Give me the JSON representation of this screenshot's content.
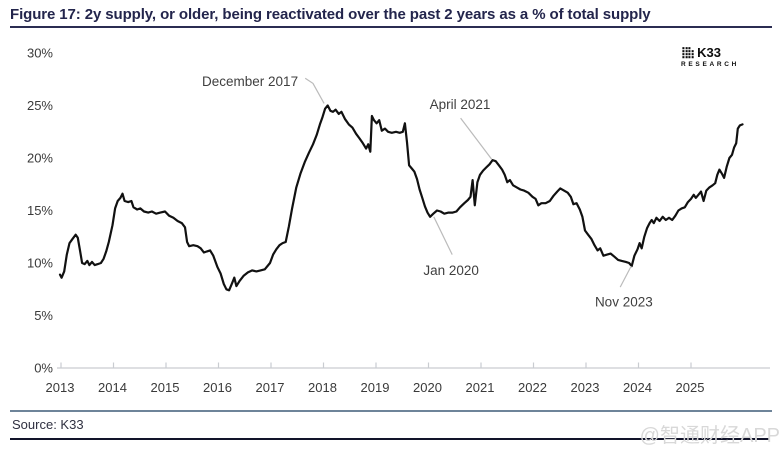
{
  "figure": {
    "title": "Figure 17: 2y supply, or older, being reactivated over the past 2 years as a % of total supply"
  },
  "logo": {
    "icon_glyph": "⣿⣷",
    "name": "K33",
    "subtitle": "RESEARCH"
  },
  "source": {
    "label": "Source: K33"
  },
  "watermark": {
    "text": "@智通财经APP"
  },
  "colors": {
    "line": "#111111",
    "axis": "#c9ccd1",
    "leader": "#bbbbbb",
    "title": "#23254c",
    "tick_label": "#3a3a3a",
    "annotation": "#3f3f3f",
    "rule_top": "#6e8499",
    "rule_bottom": "#12142a",
    "watermark": "#d8d8d8"
  },
  "chart_data": {
    "type": "line",
    "title": "Figure 17: 2y supply, or older, being reactivated over the past 2 years as a % of total supply",
    "xlabel": "",
    "ylabel": "",
    "grid": false,
    "legend": "none",
    "x_ticks": [
      2013,
      2014,
      2015,
      2016,
      2017,
      2018,
      2019,
      2020,
      2021,
      2022,
      2023,
      2024,
      2025
    ],
    "y_ticks": [
      0,
      5,
      10,
      15,
      20,
      25,
      30
    ],
    "y_tick_suffix": "%",
    "xlim": [
      2012.95,
      2026.55
    ],
    "ylim": [
      0,
      30
    ],
    "annotations": [
      {
        "label": "December 2017",
        "x": 2016.62,
        "y": 27.3,
        "leader": [
          [
            2017.67,
            27.6
          ],
          [
            2017.82,
            27.1
          ],
          [
            2018.03,
            25.2
          ]
        ]
      },
      {
        "label": "April 2021",
        "x": 2020.62,
        "y": 25.1,
        "leader": [
          [
            2020.63,
            23.8
          ],
          [
            2021.22,
            19.9
          ]
        ]
      },
      {
        "label": "Jan 2020",
        "x": 2020.45,
        "y": 9.3,
        "leader": [
          [
            2020.47,
            10.8
          ],
          [
            2020.12,
            14.4
          ]
        ]
      },
      {
        "label": "Nov 2023",
        "x": 2023.74,
        "y": 6.3,
        "leader": [
          [
            2023.67,
            7.7
          ],
          [
            2023.88,
            9.7
          ]
        ]
      }
    ],
    "series": [
      {
        "name": "2y+ supply reactivated as % of total supply",
        "points": [
          [
            2013.0,
            8.9
          ],
          [
            2013.03,
            8.6
          ],
          [
            2013.08,
            9.2
          ],
          [
            2013.13,
            10.8
          ],
          [
            2013.18,
            11.9
          ],
          [
            2013.24,
            12.3
          ],
          [
            2013.3,
            12.7
          ],
          [
            2013.34,
            12.4
          ],
          [
            2013.38,
            11.2
          ],
          [
            2013.42,
            10.0
          ],
          [
            2013.47,
            9.9
          ],
          [
            2013.52,
            10.2
          ],
          [
            2013.56,
            9.8
          ],
          [
            2013.61,
            10.1
          ],
          [
            2013.66,
            9.8
          ],
          [
            2013.72,
            9.9
          ],
          [
            2013.78,
            10.0
          ],
          [
            2013.83,
            10.4
          ],
          [
            2013.88,
            11.1
          ],
          [
            2013.93,
            12.0
          ],
          [
            2014.0,
            13.6
          ],
          [
            2014.05,
            15.2
          ],
          [
            2014.1,
            15.9
          ],
          [
            2014.15,
            16.2
          ],
          [
            2014.19,
            16.6
          ],
          [
            2014.23,
            15.9
          ],
          [
            2014.3,
            15.8
          ],
          [
            2014.36,
            15.9
          ],
          [
            2014.4,
            15.3
          ],
          [
            2014.47,
            15.1
          ],
          [
            2014.53,
            15.2
          ],
          [
            2014.6,
            14.9
          ],
          [
            2014.68,
            14.8
          ],
          [
            2014.75,
            14.9
          ],
          [
            2014.83,
            14.7
          ],
          [
            2014.91,
            14.8
          ],
          [
            2015.0,
            14.9
          ],
          [
            2015.08,
            14.5
          ],
          [
            2015.16,
            14.3
          ],
          [
            2015.24,
            14.0
          ],
          [
            2015.32,
            13.8
          ],
          [
            2015.38,
            13.4
          ],
          [
            2015.42,
            12.0
          ],
          [
            2015.46,
            11.6
          ],
          [
            2015.54,
            11.7
          ],
          [
            2015.62,
            11.6
          ],
          [
            2015.68,
            11.4
          ],
          [
            2015.74,
            11.0
          ],
          [
            2015.8,
            11.1
          ],
          [
            2015.86,
            11.2
          ],
          [
            2015.92,
            10.7
          ],
          [
            2016.0,
            9.6
          ],
          [
            2016.06,
            9.0
          ],
          [
            2016.12,
            8.0
          ],
          [
            2016.17,
            7.5
          ],
          [
            2016.22,
            7.4
          ],
          [
            2016.28,
            8.1
          ],
          [
            2016.32,
            8.6
          ],
          [
            2016.36,
            7.8
          ],
          [
            2016.42,
            8.3
          ],
          [
            2016.5,
            8.8
          ],
          [
            2016.58,
            9.1
          ],
          [
            2016.66,
            9.3
          ],
          [
            2016.74,
            9.2
          ],
          [
            2016.82,
            9.3
          ],
          [
            2016.9,
            9.4
          ],
          [
            2017.0,
            10.0
          ],
          [
            2017.06,
            10.8
          ],
          [
            2017.12,
            11.3
          ],
          [
            2017.18,
            11.7
          ],
          [
            2017.24,
            11.9
          ],
          [
            2017.3,
            12.0
          ],
          [
            2017.36,
            13.5
          ],
          [
            2017.42,
            15.2
          ],
          [
            2017.5,
            17.2
          ],
          [
            2017.58,
            18.5
          ],
          [
            2017.66,
            19.6
          ],
          [
            2017.74,
            20.5
          ],
          [
            2017.82,
            21.3
          ],
          [
            2017.89,
            22.2
          ],
          [
            2017.95,
            23.2
          ],
          [
            2018.0,
            23.9
          ],
          [
            2018.05,
            24.7
          ],
          [
            2018.1,
            25.0
          ],
          [
            2018.15,
            24.5
          ],
          [
            2018.2,
            24.4
          ],
          [
            2018.25,
            24.6
          ],
          [
            2018.31,
            24.2
          ],
          [
            2018.36,
            24.4
          ],
          [
            2018.43,
            23.7
          ],
          [
            2018.5,
            23.2
          ],
          [
            2018.57,
            22.9
          ],
          [
            2018.64,
            22.3
          ],
          [
            2018.7,
            21.9
          ],
          [
            2018.77,
            21.4
          ],
          [
            2018.83,
            20.9
          ],
          [
            2018.87,
            21.3
          ],
          [
            2018.91,
            20.6
          ],
          [
            2018.94,
            24.0
          ],
          [
            2018.98,
            23.6
          ],
          [
            2019.03,
            23.3
          ],
          [
            2019.08,
            23.6
          ],
          [
            2019.13,
            22.6
          ],
          [
            2019.19,
            22.8
          ],
          [
            2019.25,
            22.5
          ],
          [
            2019.32,
            22.4
          ],
          [
            2019.4,
            22.5
          ],
          [
            2019.47,
            22.4
          ],
          [
            2019.53,
            22.5
          ],
          [
            2019.57,
            23.3
          ],
          [
            2019.61,
            21.5
          ],
          [
            2019.65,
            19.3
          ],
          [
            2019.7,
            19.0
          ],
          [
            2019.75,
            18.7
          ],
          [
            2019.8,
            18.0
          ],
          [
            2019.85,
            17.0
          ],
          [
            2019.9,
            16.2
          ],
          [
            2019.95,
            15.4
          ],
          [
            2020.0,
            14.8
          ],
          [
            2020.05,
            14.4
          ],
          [
            2020.11,
            14.7
          ],
          [
            2020.18,
            15.0
          ],
          [
            2020.25,
            14.9
          ],
          [
            2020.32,
            14.7
          ],
          [
            2020.4,
            14.8
          ],
          [
            2020.48,
            14.8
          ],
          [
            2020.55,
            14.9
          ],
          [
            2020.62,
            15.3
          ],
          [
            2020.7,
            15.7
          ],
          [
            2020.77,
            16.0
          ],
          [
            2020.82,
            16.3
          ],
          [
            2020.86,
            17.9
          ],
          [
            2020.9,
            15.5
          ],
          [
            2020.95,
            17.7
          ],
          [
            2021.0,
            18.4
          ],
          [
            2021.06,
            18.8
          ],
          [
            2021.12,
            19.1
          ],
          [
            2021.18,
            19.4
          ],
          [
            2021.24,
            19.8
          ],
          [
            2021.3,
            19.7
          ],
          [
            2021.36,
            19.3
          ],
          [
            2021.42,
            18.9
          ],
          [
            2021.47,
            18.4
          ],
          [
            2021.52,
            17.7
          ],
          [
            2021.57,
            17.9
          ],
          [
            2021.63,
            17.4
          ],
          [
            2021.7,
            17.2
          ],
          [
            2021.77,
            17.0
          ],
          [
            2021.84,
            16.9
          ],
          [
            2021.92,
            16.7
          ],
          [
            2022.0,
            16.3
          ],
          [
            2022.06,
            16.1
          ],
          [
            2022.11,
            15.5
          ],
          [
            2022.17,
            15.7
          ],
          [
            2022.25,
            15.7
          ],
          [
            2022.33,
            15.9
          ],
          [
            2022.4,
            16.4
          ],
          [
            2022.47,
            16.8
          ],
          [
            2022.53,
            17.1
          ],
          [
            2022.6,
            16.9
          ],
          [
            2022.67,
            16.7
          ],
          [
            2022.73,
            16.3
          ],
          [
            2022.78,
            15.6
          ],
          [
            2022.84,
            15.7
          ],
          [
            2022.9,
            15.1
          ],
          [
            2022.95,
            14.4
          ],
          [
            2023.0,
            13.1
          ],
          [
            2023.06,
            12.7
          ],
          [
            2023.12,
            12.3
          ],
          [
            2023.18,
            11.7
          ],
          [
            2023.24,
            11.2
          ],
          [
            2023.29,
            11.4
          ],
          [
            2023.35,
            10.7
          ],
          [
            2023.42,
            10.8
          ],
          [
            2023.49,
            10.9
          ],
          [
            2023.56,
            10.6
          ],
          [
            2023.63,
            10.3
          ],
          [
            2023.7,
            10.2
          ],
          [
            2023.78,
            10.1
          ],
          [
            2023.84,
            10.0
          ],
          [
            2023.89,
            9.7
          ],
          [
            2023.94,
            10.7
          ],
          [
            2024.0,
            11.3
          ],
          [
            2024.04,
            11.9
          ],
          [
            2024.08,
            11.4
          ],
          [
            2024.13,
            12.5
          ],
          [
            2024.18,
            13.3
          ],
          [
            2024.23,
            13.8
          ],
          [
            2024.27,
            14.1
          ],
          [
            2024.31,
            13.8
          ],
          [
            2024.36,
            14.3
          ],
          [
            2024.42,
            14.0
          ],
          [
            2024.48,
            14.4
          ],
          [
            2024.54,
            14.1
          ],
          [
            2024.6,
            14.3
          ],
          [
            2024.66,
            14.1
          ],
          [
            2024.72,
            14.5
          ],
          [
            2024.78,
            15.0
          ],
          [
            2024.84,
            15.2
          ],
          [
            2024.9,
            15.3
          ],
          [
            2024.96,
            15.8
          ],
          [
            2025.02,
            16.1
          ],
          [
            2025.07,
            16.5
          ],
          [
            2025.11,
            16.2
          ],
          [
            2025.16,
            16.5
          ],
          [
            2025.21,
            16.8
          ],
          [
            2025.26,
            15.9
          ],
          [
            2025.31,
            16.9
          ],
          [
            2025.37,
            17.2
          ],
          [
            2025.43,
            17.4
          ],
          [
            2025.48,
            17.6
          ],
          [
            2025.52,
            18.4
          ],
          [
            2025.56,
            18.9
          ],
          [
            2025.61,
            18.5
          ],
          [
            2025.65,
            18.1
          ],
          [
            2025.7,
            19.2
          ],
          [
            2025.75,
            20.0
          ],
          [
            2025.8,
            20.3
          ],
          [
            2025.84,
            21.0
          ],
          [
            2025.88,
            21.4
          ],
          [
            2025.91,
            22.8
          ],
          [
            2025.95,
            23.1
          ],
          [
            2026.0,
            23.2
          ]
        ]
      }
    ]
  }
}
